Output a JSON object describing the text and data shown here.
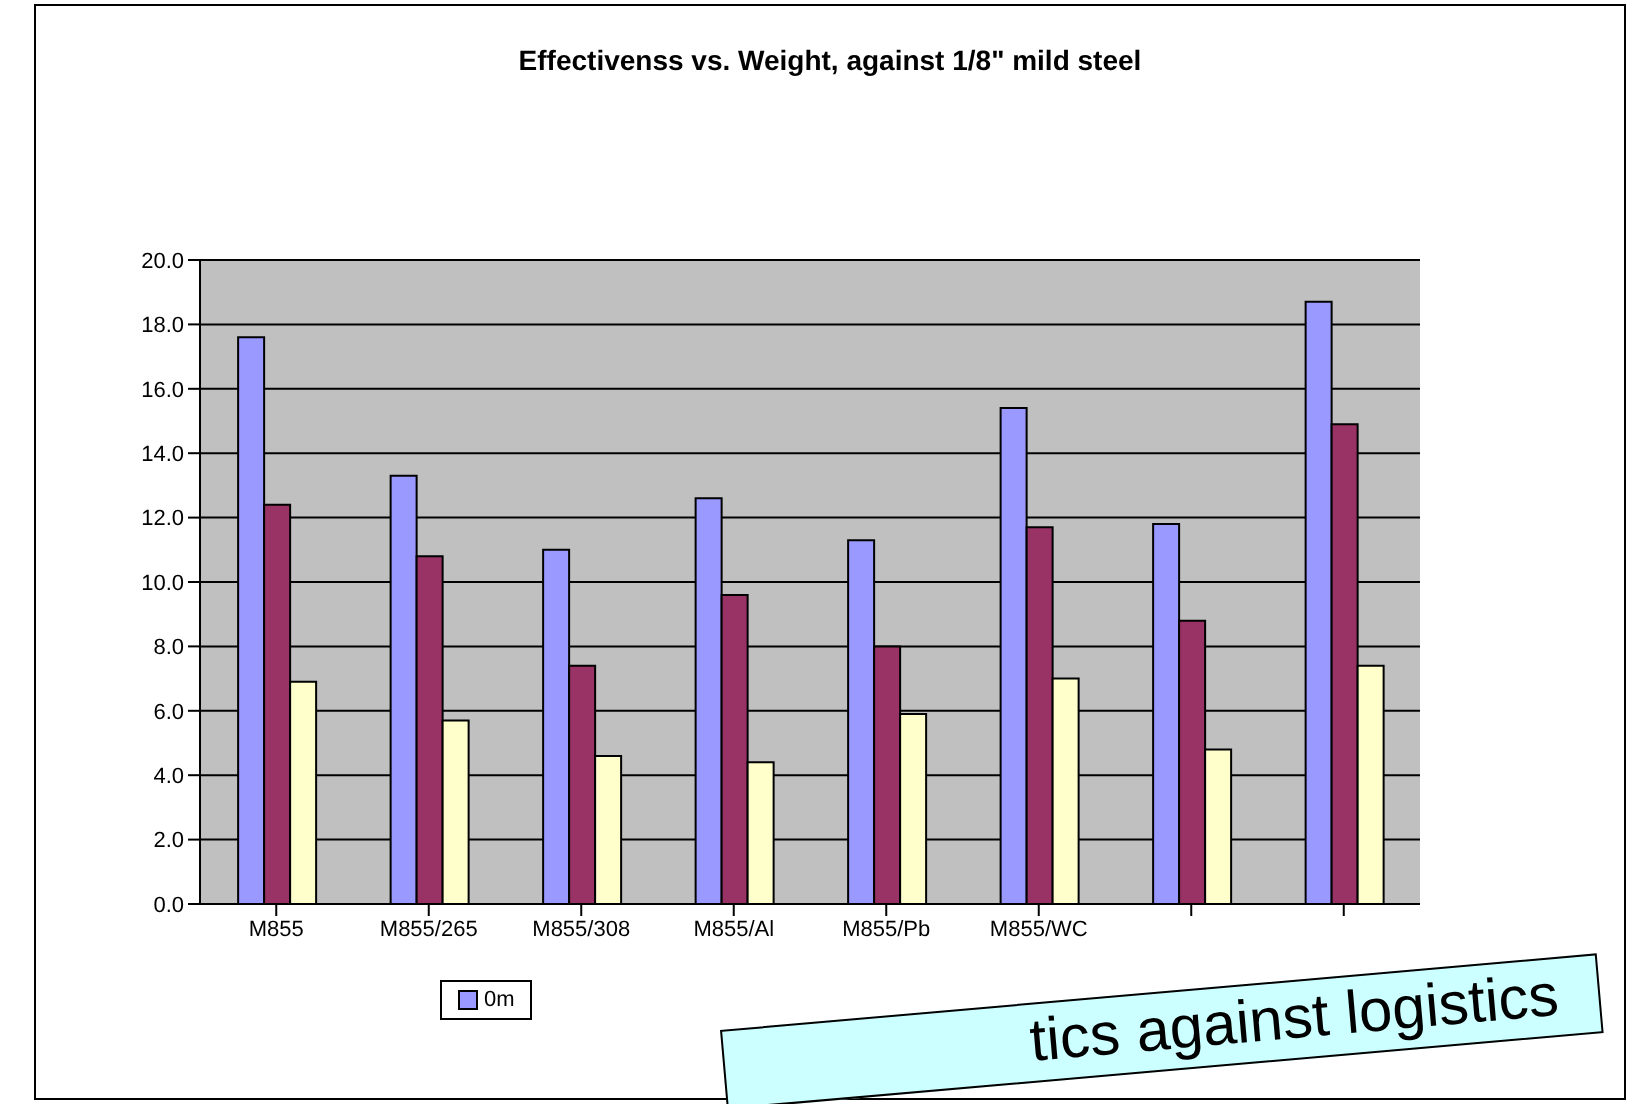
{
  "chart_data": {
    "type": "bar",
    "title": "Effectivenss vs. Weight, against 1/8\" mild steel",
    "categories": [
      "M855",
      "M855/265",
      "M855/308",
      "M855/Al",
      "M855/Pb",
      "M855/WC",
      null,
      null
    ],
    "series": [
      {
        "name": "0m",
        "color": "#9999ff",
        "values": [
          17.6,
          13.3,
          11.0,
          12.6,
          11.3,
          15.4,
          11.8,
          18.7
        ]
      },
      {
        "color": "#993366",
        "values": [
          12.4,
          10.8,
          7.4,
          9.6,
          8.0,
          11.7,
          8.8,
          14.9
        ]
      },
      {
        "color": "#ffffcc",
        "values": [
          6.9,
          5.7,
          4.6,
          4.4,
          5.9,
          7.0,
          4.8,
          7.4
        ]
      }
    ],
    "ylim": [
      0,
      20
    ],
    "yticks": [
      {
        "value": 0,
        "label": "0.0"
      },
      {
        "value": 2,
        "label": "2.0"
      },
      {
        "value": 4,
        "label": "4.0"
      },
      {
        "value": 6,
        "label": "6.0"
      },
      {
        "value": 8,
        "label": "8.0"
      },
      {
        "value": 10,
        "label": "10.0"
      },
      {
        "value": 12,
        "label": "12.0"
      },
      {
        "value": 14,
        "label": "14.0"
      },
      {
        "value": 16,
        "label": "16.0"
      },
      {
        "value": 18,
        "label": "18.0"
      },
      {
        "value": 20,
        "label": "20.0"
      }
    ],
    "grid": "y",
    "legend": "bottom",
    "annotations": [
      "tics against logistics"
    ]
  }
}
